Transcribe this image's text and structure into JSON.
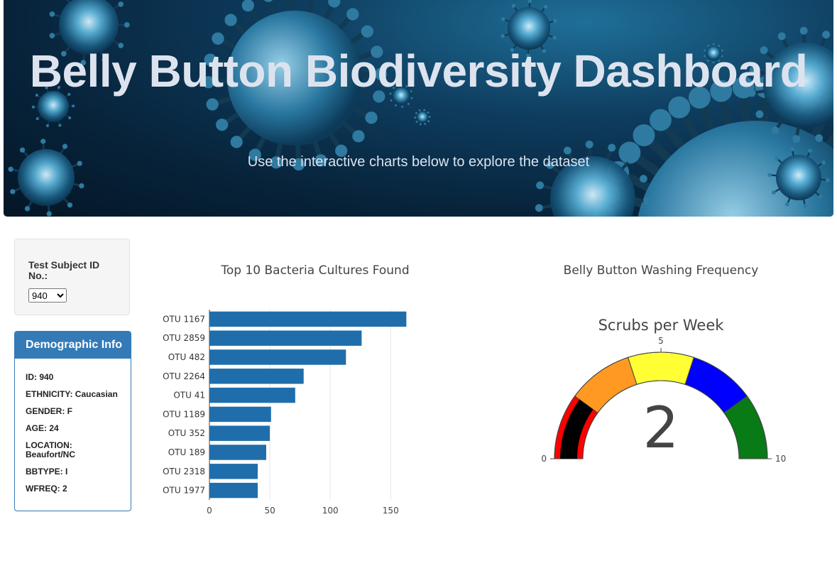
{
  "header": {
    "title": "Belly Button Biodiversity Dashboard",
    "subtitle": "Use the interactive charts below to explore the dataset"
  },
  "selector": {
    "label": "Test Subject ID No.:",
    "selected": "940"
  },
  "demographic": {
    "heading": "Demographic Info",
    "items": [
      "ID: 940",
      "ETHNICITY: Caucasian",
      "GENDER: F",
      "AGE: 24",
      "LOCATION: Beaufort/NC",
      "BBTYPE: I",
      "WFREQ: 2"
    ]
  },
  "bar_chart": {
    "title": "Top 10 Bacteria Cultures Found"
  },
  "gauge_chart": {
    "title": "Belly Button Washing Frequency",
    "label": "Scrubs per Week"
  },
  "chart_data": [
    {
      "type": "bar",
      "orientation": "horizontal",
      "title": "Top 10 Bacteria Cultures Found",
      "categories": [
        "OTU 1167",
        "OTU 2859",
        "OTU 482",
        "OTU 2264",
        "OTU 41",
        "OTU 1189",
        "OTU 352",
        "OTU 189",
        "OTU 2318",
        "OTU 1977"
      ],
      "values": [
        163,
        126,
        113,
        78,
        71,
        51,
        50,
        47,
        40,
        40
      ],
      "xticks": [
        0,
        50,
        100,
        150
      ],
      "xlim": [
        0,
        171
      ],
      "grid": true,
      "color": "#1f6eab"
    },
    {
      "type": "gauge",
      "title": "Belly Button Washing Frequency",
      "label": "Scrubs per Week",
      "value": 2,
      "range": [
        0,
        10
      ],
      "ticks": [
        0,
        5,
        10
      ],
      "bar_color": "#000000",
      "steps": [
        {
          "range": [
            0,
            2
          ],
          "color": "#ff0000"
        },
        {
          "range": [
            2,
            4
          ],
          "color": "#ff9922"
        },
        {
          "range": [
            4,
            6
          ],
          "color": "#ffff33"
        },
        {
          "range": [
            6,
            8
          ],
          "color": "#0000ff"
        },
        {
          "range": [
            8,
            10
          ],
          "color": "#087a16"
        }
      ]
    }
  ]
}
